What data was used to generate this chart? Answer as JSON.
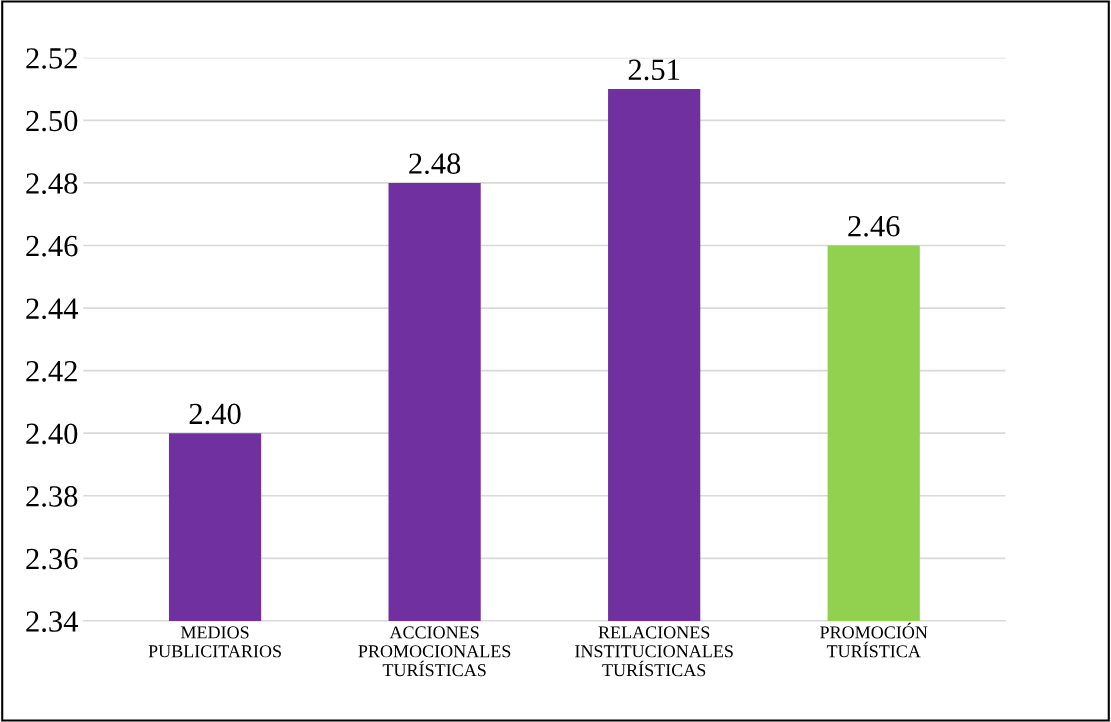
{
  "chart_data": {
    "type": "bar",
    "categories": [
      "MEDIOS\nPUBLICITARIOS",
      "ACCIONES\nPROMOCIONALES\nTURÍSTICAS",
      "RELACIONES\nINSTITUCIONALES\nTURÍSTICAS",
      "PROMOCIÓN\nTURÍSTICA"
    ],
    "values": [
      2.4,
      2.48,
      2.51,
      2.46
    ],
    "colors": [
      "#7030a0",
      "#7030a0",
      "#7030a0",
      "#92d050"
    ],
    "value_labels": [
      "2.40",
      "2.48",
      "2.51",
      "2.46"
    ],
    "ylim": [
      2.34,
      2.52
    ],
    "yticks": [
      {
        "value": 2.34,
        "label": "2.34"
      },
      {
        "value": 2.36,
        "label": "2.36"
      },
      {
        "value": 2.38,
        "label": "2.38"
      },
      {
        "value": 2.4,
        "label": "2.40"
      },
      {
        "value": 2.42,
        "label": "2.42"
      },
      {
        "value": 2.44,
        "label": "2.44"
      },
      {
        "value": 2.46,
        "label": "2.46"
      },
      {
        "value": 2.48,
        "label": "2.48"
      },
      {
        "value": 2.5,
        "label": "2.50"
      },
      {
        "value": 2.52,
        "label": "2.52"
      }
    ],
    "grid": "y"
  }
}
